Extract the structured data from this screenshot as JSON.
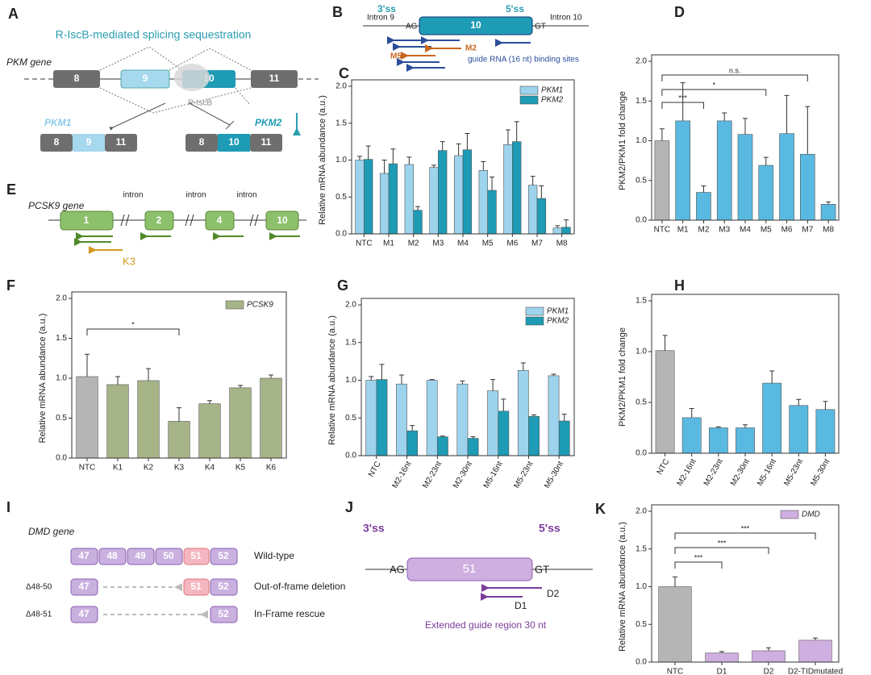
{
  "chart_data": [
    {
      "panel": "C",
      "type": "bar",
      "ylabel": "Relative mRNA abundance (a.u.)",
      "categories": [
        "NTC",
        "M1",
        "M2",
        "M3",
        "M4",
        "M5",
        "M6",
        "M7",
        "M8"
      ],
      "series": [
        {
          "name": "PKM1",
          "color": "#9dd3ec",
          "values": [
            1.0,
            0.82,
            0.94,
            0.9,
            1.06,
            0.86,
            1.21,
            0.66,
            0.08
          ],
          "errors": [
            0.05,
            0.18,
            0.1,
            0.03,
            0.16,
            0.12,
            0.2,
            0.12,
            0.03
          ]
        },
        {
          "name": "PKM2",
          "color": "#1e9bb5",
          "values": [
            1.01,
            0.95,
            0.32,
            1.13,
            1.14,
            0.59,
            1.25,
            0.48,
            0.09
          ],
          "errors": [
            0.18,
            0.2,
            0.05,
            0.12,
            0.22,
            0.18,
            0.27,
            0.17,
            0.1
          ]
        }
      ],
      "ylim": [
        0,
        2.0
      ],
      "yticks": [
        {
          "value": 0,
          "label": "0.0"
        },
        0.5,
        {
          "value": 1,
          "label": "1.0"
        },
        1.5,
        {
          "value": 2,
          "label": "2.0"
        }
      ]
    },
    {
      "panel": "D",
      "type": "bar",
      "ylabel": "PKM2/PKM1 fold change",
      "categories": [
        "NTC",
        "M1",
        "M2",
        "M3",
        "M4",
        "M5",
        "M6",
        "M7",
        "M8"
      ],
      "series": [
        {
          "colors": [
            "#b5b5b5",
            "#5ab9e0",
            "#5ab9e0",
            "#5ab9e0",
            "#5ab9e0",
            "#5ab9e0",
            "#5ab9e0",
            "#5ab9e0",
            "#5ab9e0"
          ],
          "values": [
            1.0,
            1.25,
            0.35,
            1.25,
            1.08,
            0.69,
            1.09,
            0.83,
            0.2
          ],
          "errors": [
            0.15,
            0.48,
            0.08,
            0.1,
            0.2,
            0.1,
            0.48,
            0.6,
            0.03
          ]
        }
      ],
      "ylim": [
        0,
        2.0
      ],
      "yticks": [
        {
          "value": 0,
          "label": "0.0"
        },
        0.5,
        {
          "value": 1,
          "label": "1.0"
        },
        1.5,
        {
          "value": 2,
          "label": "2.0"
        }
      ],
      "brackets": [
        {
          "from": "NTC",
          "to": "M2",
          "label": "***"
        },
        {
          "from": "NTC",
          "to": "M5",
          "label": "*"
        },
        {
          "from": "NTC",
          "to": "M7",
          "label": "n.s."
        }
      ]
    },
    {
      "panel": "F",
      "type": "bar",
      "ylabel": "Relative  mRNA abundance (a.u.)",
      "categories": [
        "NTC",
        "K1",
        "K2",
        "K3",
        "K4",
        "K5",
        "K6"
      ],
      "series": [
        {
          "name": "PCSK9",
          "color": "#a6b487",
          "colors": [
            "#b5b5b5",
            "#a6b487",
            "#a6b487",
            "#a6b487",
            "#a6b487",
            "#a6b487",
            "#a6b487"
          ],
          "values": [
            1.02,
            0.92,
            0.97,
            0.46,
            0.68,
            0.88,
            1.0
          ],
          "errors": [
            0.28,
            0.1,
            0.15,
            0.17,
            0.04,
            0.03,
            0.04
          ]
        }
      ],
      "ylim": [
        0,
        2.0
      ],
      "yticks": [
        {
          "value": 0,
          "label": "0.0"
        },
        0.5,
        {
          "value": 1,
          "label": "1.0"
        },
        1.5,
        {
          "value": 2,
          "label": "2.0"
        }
      ],
      "brackets": [
        {
          "from": "NTC",
          "to": "K3",
          "label": "*"
        }
      ]
    },
    {
      "panel": "G",
      "type": "bar",
      "ylabel": "Relative mRNA abundance (a.u.)",
      "categories": [
        "NTC",
        "M2-16nt",
        "M2-23nt",
        "M2-30nt",
        "M5-16nt",
        "M5-23nt",
        "M5-30nt"
      ],
      "series": [
        {
          "name": "PKM1",
          "color": "#9dd3ec",
          "values": [
            1.0,
            0.95,
            1.0,
            0.95,
            0.86,
            1.13,
            1.06
          ],
          "errors": [
            0.05,
            0.12,
            0.01,
            0.04,
            0.15,
            0.1,
            0.02
          ]
        },
        {
          "name": "PKM2",
          "color": "#1e9bb5",
          "values": [
            1.01,
            0.33,
            0.25,
            0.23,
            0.59,
            0.52,
            0.46
          ],
          "errors": [
            0.2,
            0.07,
            0.01,
            0.02,
            0.16,
            0.02,
            0.09
          ]
        }
      ],
      "ylim": [
        0,
        2.0
      ],
      "yticks": [
        {
          "value": 0,
          "label": "0.0"
        },
        0.5,
        {
          "value": 1,
          "label": "1.0"
        },
        1.5,
        {
          "value": 2,
          "label": "2.0"
        }
      ]
    },
    {
      "panel": "H",
      "type": "bar",
      "ylabel": "PKM2/PKM1 fold change",
      "categories": [
        "NTC",
        "M2-16nt",
        "M2-23nt",
        "M2-30nt",
        "M5-16nt",
        "M5-23nt",
        "M5-30nt"
      ],
      "series": [
        {
          "colors": [
            "#b5b5b5",
            "#5ab9e0",
            "#5ab9e0",
            "#5ab9e0",
            "#5ab9e0",
            "#5ab9e0",
            "#5ab9e0"
          ],
          "values": [
            1.01,
            0.35,
            0.25,
            0.25,
            0.69,
            0.47,
            0.43
          ],
          "errors": [
            0.15,
            0.09,
            0.01,
            0.03,
            0.12,
            0.06,
            0.08
          ]
        }
      ],
      "ylim": [
        0,
        1.5
      ],
      "yticks": [
        {
          "value": 0,
          "label": "0.0"
        },
        0.5,
        {
          "value": 1,
          "label": "1.0"
        },
        1.5
      ]
    },
    {
      "panel": "K",
      "type": "bar",
      "ylabel": "Relative mRNA abundance (a.u.)",
      "categories": [
        "NTC",
        "D1",
        "D2",
        "D2-TIDmutated"
      ],
      "series": [
        {
          "name": "DMD",
          "color": "#cfaee0",
          "colors": [
            "#b5b5b5",
            "#cfaee0",
            "#cfaee0",
            "#cfaee0"
          ],
          "values": [
            1.0,
            0.12,
            0.15,
            0.29
          ],
          "errors": [
            0.13,
            0.02,
            0.04,
            0.03
          ]
        }
      ],
      "ylim": [
        0,
        2.0
      ],
      "yticks": [
        {
          "value": 0,
          "label": "0.0"
        },
        0.5,
        {
          "value": 1,
          "label": "1.0"
        },
        1.5,
        {
          "value": 2,
          "label": "2.0"
        }
      ],
      "brackets": [
        {
          "from": "NTC",
          "to": "D1",
          "label": "***"
        },
        {
          "from": "NTC",
          "to": "D2",
          "label": "***"
        },
        {
          "from": "NTC",
          "to": "D2-TIDmutated",
          "label": "***"
        }
      ]
    }
  ],
  "diagrams": {
    "A": {
      "panel": "A",
      "title": "R-IscB-mediated splicing sequestration",
      "gene": "PKM gene",
      "exons": [
        "8",
        "9",
        "10",
        "11"
      ],
      "enzyme": "R-IscB",
      "isoform1": {
        "name": "PKM1",
        "exons": [
          "8",
          "9",
          "11"
        ]
      },
      "isoform2": {
        "name": "PKM2",
        "exons": [
          "8",
          "10",
          "11"
        ]
      }
    },
    "B": {
      "panel": "B",
      "intron_left": "Intron 9",
      "ss3": "3'ss",
      "ag": "AG",
      "exon": "10",
      "ss5": "5'ss",
      "gt": "GT",
      "intron_right": "Intron 10",
      "guide_a": "M2",
      "guide_b": "M5",
      "caption": "guide RNA (16 nt) binding sites"
    },
    "E": {
      "panel": "E",
      "gene": "PCSK9 gene",
      "exons": [
        "1",
        "2",
        "4",
        "10"
      ],
      "introns": [
        "intron",
        "intron",
        "intron"
      ],
      "guide": "K3"
    },
    "I": {
      "panel": "I",
      "gene": "DMD gene",
      "wild_exons": [
        "47",
        "48",
        "49",
        "50",
        "51",
        "52"
      ],
      "wild_label": "Wild-type",
      "del1": "Δ48-50",
      "del1_exons": [
        "47",
        "51",
        "52"
      ],
      "del1_label": "Out-of-frame deletion",
      "del2": "Δ48-51",
      "del2_exons": [
        "47",
        "52"
      ],
      "del2_label": "In-Frame rescue"
    },
    "J": {
      "panel": "J",
      "ss3": "3'ss",
      "ag": "AG",
      "exon": "51",
      "ss5": "5'ss",
      "gt": "GT",
      "guide_a": "D2",
      "guide_b": "D1",
      "caption": "Extended guide region 30 nt"
    }
  }
}
